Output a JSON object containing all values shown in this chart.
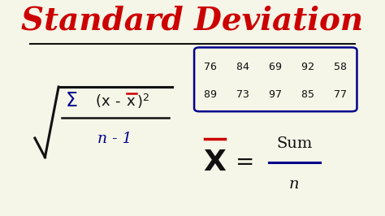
{
  "title": "Standard Deviation",
  "title_color": "#CC0000",
  "title_fontsize": 28,
  "bg_color": "#F5F5E8",
  "table_data_row1": "76   84   69   92   58",
  "table_data_row2": "89   73   97   85   77",
  "table_color": "#00008B",
  "formula_color": "#00008B",
  "sigma_color": "#00008B",
  "xbar_color": "#CC0000",
  "black_color": "#111111"
}
